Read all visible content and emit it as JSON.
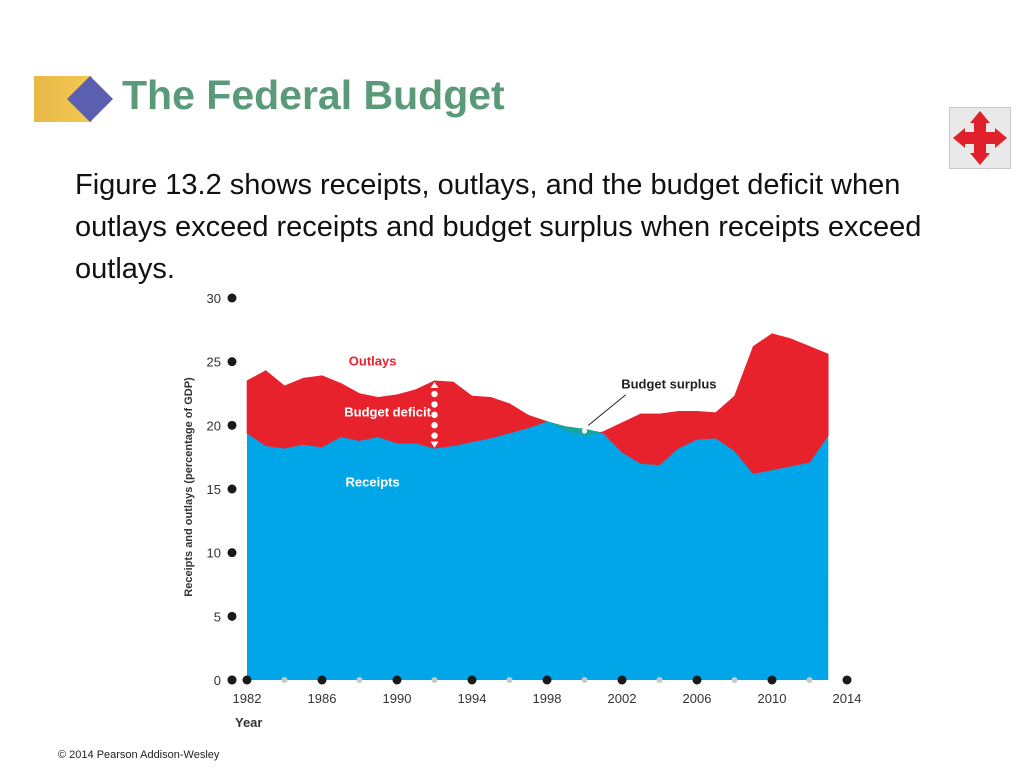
{
  "slide": {
    "title": "The Federal Budget",
    "body": "Figure 13.2 shows receipts, outlays, and the budget deficit when outlays exceed receipts and budget surplus when receipts exceed outlays.",
    "copyright": "© 2014 Pearson Addison-Wesley",
    "nav_icon": "move-arrows-icon"
  },
  "colors": {
    "title": "#5a9a78",
    "receipts": "#00a6e8",
    "outlays": "#e8222d",
    "surplus": "#1aa59a",
    "dot_major": "#1a1a1a",
    "dot_minor": "#c8c8c8"
  },
  "chart_data": {
    "type": "area",
    "xlabel": "Year",
    "ylabel": "Receipts and outlays (percentage of GDP)",
    "xlim": [
      1982,
      2014
    ],
    "ylim": [
      0,
      30
    ],
    "x_ticks": [
      1982,
      1986,
      1990,
      1994,
      1998,
      2002,
      2006,
      2010,
      2014
    ],
    "y_ticks": [
      0,
      5,
      10,
      15,
      20,
      25,
      30
    ],
    "x": [
      1982,
      1983,
      1984,
      1985,
      1986,
      1987,
      1988,
      1989,
      1990,
      1991,
      1992,
      1993,
      1994,
      1995,
      1996,
      1997,
      1998,
      1999,
      2000,
      2001,
      2002,
      2003,
      2004,
      2005,
      2006,
      2007,
      2008,
      2009,
      2010,
      2011,
      2012,
      2013
    ],
    "series": [
      {
        "name": "Outlays",
        "values": [
          23.5,
          24.3,
          23.1,
          23.7,
          23.9,
          23.3,
          22.5,
          22.2,
          22.4,
          22.8,
          23.5,
          23.4,
          22.3,
          22.2,
          21.7,
          20.8,
          20.3,
          19.6,
          19.2,
          19.5,
          20.2,
          20.9,
          20.9,
          21.1,
          21.1,
          21.0,
          22.3,
          26.2,
          27.2,
          26.8,
          26.2,
          25.6
        ]
      },
      {
        "name": "Receipts",
        "values": [
          19.4,
          18.4,
          18.2,
          18.5,
          18.3,
          19.1,
          18.8,
          19.1,
          18.6,
          18.6,
          18.2,
          18.4,
          18.7,
          19.0,
          19.4,
          19.8,
          20.3,
          19.9,
          19.7,
          19.4,
          17.9,
          17.0,
          16.9,
          18.2,
          18.9,
          19.0,
          18.0,
          16.2,
          16.5,
          16.8,
          17.1,
          19.2
        ]
      }
    ],
    "annotations": [
      "Outlays",
      "Budget deficit",
      "Budget surplus",
      "Receipts"
    ]
  }
}
